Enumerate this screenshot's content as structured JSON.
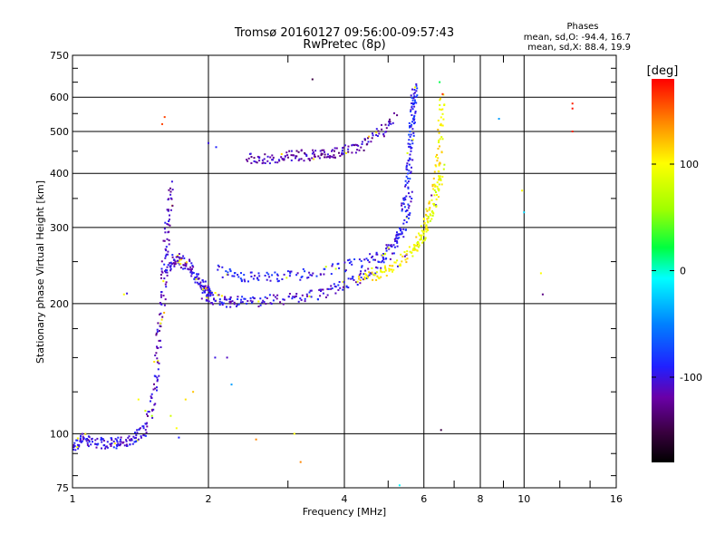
{
  "chart_data": {
    "type": "scatter",
    "title": "Tromsø 20160127 09:56:00-09:57:43",
    "subtitle": "RwPretec (8p)",
    "xlabel": "Frequency [MHz]",
    "ylabel": "Stationary phase Virtual Height [km]",
    "x_scale": "log",
    "y_scale": "log",
    "xlim": [
      1,
      16
    ],
    "ylim": [
      75,
      750
    ],
    "xticks": [
      1,
      2,
      4,
      6,
      8,
      10,
      16
    ],
    "xtick_labels": [
      "1",
      "2",
      "4",
      "6",
      "8",
      "10",
      "16"
    ],
    "yticks": [
      75,
      100,
      200,
      300,
      400,
      500,
      600,
      750
    ],
    "ytick_labels": [
      "75",
      "100",
      "200",
      "300",
      "400",
      "500",
      "600",
      "750"
    ],
    "grid": true,
    "stats": {
      "title": "Phases",
      "o_line": "mean, sd,O: -94.4, 16.7",
      "x_line": "mean, sd,X: 88.4, 19.9"
    },
    "colorbar": {
      "label": "[deg]",
      "range": [
        -180,
        180
      ],
      "ticks": [
        100,
        0,
        -100
      ],
      "tick_labels": [
        "100",
        "0",
        "-100"
      ]
    },
    "traces": [
      {
        "x": [
          1.0,
          1.03,
          1.06,
          1.1,
          1.15,
          1.2,
          1.25,
          1.3,
          1.35,
          1.4,
          1.45
        ],
        "y": [
          93,
          95,
          98,
          96,
          95,
          95,
          95,
          96,
          97,
          100,
          102
        ],
        "phase": -100
      },
      {
        "x": [
          1.45,
          1.5,
          1.53,
          1.55,
          1.57,
          1.59,
          1.6,
          1.62,
          1.64,
          1.66
        ],
        "y": [
          105,
          115,
          135,
          160,
          185,
          215,
          250,
          290,
          330,
          380
        ],
        "phase": -110
      },
      {
        "x": [
          1.62,
          1.66,
          1.7,
          1.75,
          1.8,
          1.85,
          1.9,
          1.95,
          2.0,
          2.05
        ],
        "y": [
          235,
          250,
          255,
          250,
          245,
          235,
          225,
          220,
          215,
          212
        ],
        "phase": -105
      },
      {
        "x": [
          1.95,
          2.0,
          2.1,
          2.2,
          2.3,
          2.5,
          2.7,
          3.0,
          3.3,
          3.6,
          3.9,
          4.2,
          4.5,
          4.8,
          5.1,
          5.4
        ],
        "y": [
          210,
          207,
          204,
          202,
          202,
          202,
          203,
          205,
          208,
          212,
          218,
          225,
          235,
          248,
          265,
          290
        ],
        "phase": -100
      },
      {
        "x": [
          2.1,
          2.3,
          2.5,
          2.8,
          3.1,
          3.5,
          4.0,
          4.5,
          5.0,
          5.3,
          5.5,
          5.6
        ],
        "y": [
          240,
          232,
          230,
          230,
          232,
          236,
          243,
          252,
          268,
          285,
          310,
          360
        ],
        "phase": -95
      },
      {
        "x": [
          5.4,
          5.5,
          5.55,
          5.6,
          5.63,
          5.66,
          5.68,
          5.7,
          5.72
        ],
        "y": [
          320,
          360,
          400,
          440,
          480,
          520,
          560,
          600,
          640
        ],
        "phase": -90
      },
      {
        "x": [
          2.45,
          2.6,
          2.8,
          3.0,
          3.2,
          3.4,
          3.6,
          3.8,
          4.0,
          4.3,
          4.6,
          4.9,
          5.2
        ],
        "y": [
          430,
          433,
          435,
          437,
          440,
          441,
          443,
          447,
          452,
          460,
          480,
          505,
          540
        ],
        "phase": -115
      },
      {
        "x": [
          4.3,
          4.6,
          4.9,
          5.2,
          5.5,
          5.8,
          6.0,
          6.2,
          6.4,
          6.5,
          6.55,
          6.6
        ],
        "y": [
          228,
          232,
          238,
          245,
          258,
          275,
          300,
          340,
          390,
          450,
          520,
          600
        ],
        "phase": 105
      },
      {
        "x": [
          5.7,
          5.9,
          6.1,
          6.3,
          6.45,
          6.6
        ],
        "y": [
          265,
          280,
          300,
          330,
          370,
          420
        ],
        "phase": 90
      }
    ],
    "extra_points": [
      {
        "x": 1.58,
        "y": 520,
        "phase": 160
      },
      {
        "x": 1.6,
        "y": 540,
        "phase": 160
      },
      {
        "x": 3.4,
        "y": 660,
        "phase": -150
      },
      {
        "x": 6.5,
        "y": 650,
        "phase": 20
      },
      {
        "x": 6.6,
        "y": 610,
        "phase": 170
      },
      {
        "x": 8.8,
        "y": 535,
        "phase": -40
      },
      {
        "x": 9.9,
        "y": 365,
        "phase": 100
      },
      {
        "x": 10.0,
        "y": 325,
        "phase": -20
      },
      {
        "x": 10.9,
        "y": 235,
        "phase": 100
      },
      {
        "x": 11.0,
        "y": 210,
        "phase": -130
      },
      {
        "x": 12.8,
        "y": 580,
        "phase": 170
      },
      {
        "x": 12.8,
        "y": 565,
        "phase": 175
      },
      {
        "x": 12.8,
        "y": 500,
        "phase": 170
      },
      {
        "x": 2.55,
        "y": 97,
        "phase": 140
      },
      {
        "x": 3.1,
        "y": 100,
        "phase": 100
      },
      {
        "x": 3.2,
        "y": 86,
        "phase": 140
      },
      {
        "x": 5.3,
        "y": 76,
        "phase": -10
      },
      {
        "x": 6.55,
        "y": 102,
        "phase": -150
      },
      {
        "x": 1.3,
        "y": 210,
        "phase": 100
      },
      {
        "x": 1.32,
        "y": 211,
        "phase": -100
      },
      {
        "x": 1.65,
        "y": 110,
        "phase": 80
      },
      {
        "x": 1.7,
        "y": 103,
        "phase": 100
      },
      {
        "x": 1.72,
        "y": 98,
        "phase": -90
      },
      {
        "x": 1.78,
        "y": 120,
        "phase": 110
      },
      {
        "x": 1.85,
        "y": 125,
        "phase": 120
      },
      {
        "x": 1.4,
        "y": 120,
        "phase": 100
      },
      {
        "x": 1.45,
        "y": 113,
        "phase": 80
      },
      {
        "x": 1.5,
        "y": 110,
        "phase": 60
      },
      {
        "x": 2.15,
        "y": 230,
        "phase": -100
      },
      {
        "x": 2.2,
        "y": 150,
        "phase": -110
      },
      {
        "x": 2.25,
        "y": 130,
        "phase": -40
      },
      {
        "x": 2.07,
        "y": 150,
        "phase": -100
      },
      {
        "x": 2.0,
        "y": 470,
        "phase": -100
      },
      {
        "x": 2.08,
        "y": 460,
        "phase": -90
      }
    ]
  }
}
